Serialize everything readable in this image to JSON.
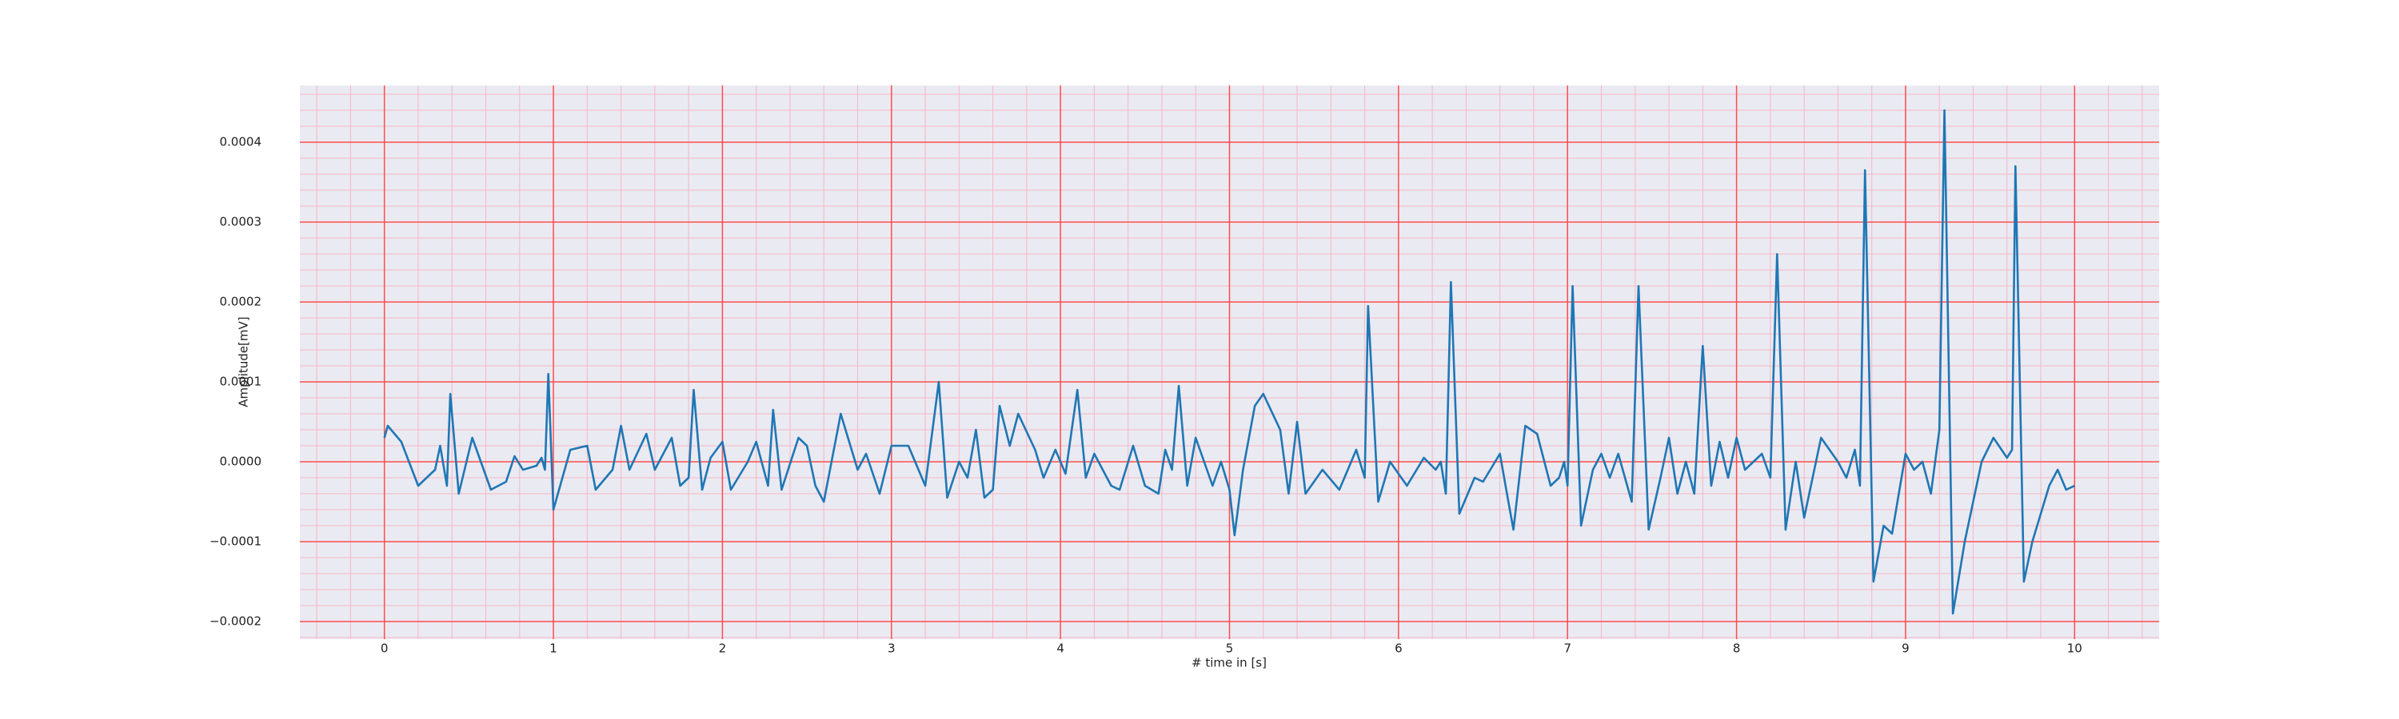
{
  "chart_data": {
    "type": "line",
    "xlabel": "# time in [s]",
    "ylabel": "Amplitude[mV]",
    "xlim": [
      -0.5,
      10.5
    ],
    "ylim": [
      -0.000222,
      0.000471
    ],
    "xticks": [
      0,
      1,
      2,
      3,
      4,
      5,
      6,
      7,
      8,
      9,
      10
    ],
    "yticks": [
      {
        "value": -0.0002,
        "label": "−0.0002"
      },
      {
        "value": -0.0001,
        "label": "−0.0001"
      },
      {
        "value": 0,
        "label": "0.0000"
      },
      {
        "value": 0.0001,
        "label": "0.0001"
      },
      {
        "value": 0.0002,
        "label": "0.0002"
      },
      {
        "value": 0.0003,
        "label": "0.0003"
      },
      {
        "value": 0.0004,
        "label": "0.0004"
      }
    ],
    "grid": true,
    "grid_color": "#ff4d4d",
    "minor_grid_divisions": 5,
    "minor_grid_color": "#f5b8c4",
    "background": "#eaeaf2",
    "series": [
      {
        "color": "#1f77b4",
        "x": [
          0,
          0.02,
          0.1,
          0.2,
          0.3,
          0.33,
          0.37,
          0.39,
          0.44,
          0.52,
          0.63,
          0.72,
          0.77,
          0.82,
          0.9,
          0.93,
          0.95,
          0.97,
          1.0,
          1.1,
          1.2,
          1.25,
          1.35,
          1.4,
          1.45,
          1.55,
          1.6,
          1.7,
          1.75,
          1.8,
          1.83,
          1.88,
          1.93,
          2.0,
          2.05,
          2.15,
          2.2,
          2.27,
          2.3,
          2.35,
          2.45,
          2.5,
          2.55,
          2.6,
          2.7,
          2.8,
          2.85,
          2.93,
          3.0,
          3.1,
          3.2,
          3.28,
          3.33,
          3.4,
          3.45,
          3.5,
          3.55,
          3.6,
          3.64,
          3.7,
          3.75,
          3.85,
          3.9,
          3.97,
          4.03,
          4.1,
          4.15,
          4.2,
          4.3,
          4.35,
          4.43,
          4.5,
          4.58,
          4.62,
          4.66,
          4.7,
          4.75,
          4.8,
          4.9,
          4.95,
          5.0,
          5.03,
          5.08,
          5.15,
          5.2,
          5.3,
          5.35,
          5.4,
          5.45,
          5.55,
          5.65,
          5.75,
          5.8,
          5.82,
          5.88,
          5.95,
          6.05,
          6.15,
          6.22,
          6.25,
          6.28,
          6.31,
          6.36,
          6.45,
          6.5,
          6.6,
          6.65,
          6.68,
          6.75,
          6.82,
          6.9,
          6.95,
          6.98,
          7.0,
          7.03,
          7.08,
          7.15,
          7.2,
          7.25,
          7.3,
          7.38,
          7.42,
          7.48,
          7.55,
          7.6,
          7.65,
          7.7,
          7.75,
          7.8,
          7.85,
          7.9,
          7.95,
          8.0,
          8.05,
          8.15,
          8.2,
          8.24,
          8.29,
          8.35,
          8.4,
          8.5,
          8.6,
          8.65,
          8.7,
          8.73,
          8.76,
          8.81,
          8.87,
          8.92,
          9.0,
          9.05,
          9.1,
          9.15,
          9.2,
          9.23,
          9.28,
          9.35,
          9.45,
          9.52,
          9.6,
          9.63,
          9.65,
          9.7,
          9.75,
          9.85,
          9.9,
          9.95,
          10.0
        ],
        "values": [
          3e-05,
          4.5e-05,
          2.5e-05,
          -3e-05,
          -1e-05,
          2e-05,
          -3e-05,
          8.5e-05,
          -4e-05,
          3e-05,
          -3.5e-05,
          -2.5e-05,
          7e-06,
          -1e-05,
          -5e-06,
          5e-06,
          -1e-05,
          0.00011,
          -6e-05,
          1.5e-05,
          2e-05,
          -3.5e-05,
          -1e-05,
          4.5e-05,
          -1e-05,
          3.5e-05,
          -1e-05,
          3e-05,
          -3e-05,
          -2e-05,
          9e-05,
          -3.5e-05,
          5e-06,
          2.5e-05,
          -3.5e-05,
          0,
          2.5e-05,
          -3e-05,
          6.5e-05,
          -3.5e-05,
          3e-05,
          2e-05,
          -3e-05,
          -5e-05,
          6e-05,
          -1e-05,
          1e-05,
          -4e-05,
          2e-05,
          2e-05,
          -3e-05,
          0.0001,
          -4.5e-05,
          0,
          -2e-05,
          4e-05,
          -4.5e-05,
          -3.5e-05,
          7e-05,
          2e-05,
          6e-05,
          1.5e-05,
          -2e-05,
          1.5e-05,
          -1.5e-05,
          9e-05,
          -2e-05,
          1e-05,
          -3e-05,
          -3.5e-05,
          2e-05,
          -3e-05,
          -4e-05,
          1.5e-05,
          -1e-05,
          9.5e-05,
          -3e-05,
          3e-05,
          -3e-05,
          0,
          -3.5e-05,
          -9.2e-05,
          -1e-05,
          7e-05,
          8.5e-05,
          4e-05,
          -4e-05,
          5e-05,
          -4e-05,
          -1e-05,
          -3.5e-05,
          1.5e-05,
          -2e-05,
          0.000195,
          -5e-05,
          0,
          -3e-05,
          5e-06,
          -1e-05,
          0,
          -4e-05,
          0.000225,
          -6.5e-05,
          -2e-05,
          -2.5e-05,
          1e-05,
          -5e-05,
          -8.5e-05,
          4.5e-05,
          3.5e-05,
          -3e-05,
          -2e-05,
          0,
          -3e-05,
          0.00022,
          -8e-05,
          -1e-05,
          1e-05,
          -2e-05,
          1e-05,
          -5e-05,
          0.00022,
          -8.5e-05,
          -2e-05,
          3e-05,
          -4e-05,
          0,
          -4e-05,
          0.000145,
          -3e-05,
          2.5e-05,
          -2e-05,
          3e-05,
          -1e-05,
          1e-05,
          -2e-05,
          0.00026,
          -8.5e-05,
          0,
          -7e-05,
          3e-05,
          0,
          -2e-05,
          1.5e-05,
          -3e-05,
          0.000365,
          -0.00015,
          -8e-05,
          -9e-05,
          1e-05,
          -1e-05,
          0,
          -4e-05,
          4e-05,
          0.00044,
          -0.00019,
          -0.0001,
          0,
          3e-05,
          5e-06,
          1.5e-05,
          0.00037,
          -0.00015,
          -0.0001,
          -3e-05,
          -1e-05,
          -3.5e-05,
          -3e-05
        ]
      }
    ]
  }
}
